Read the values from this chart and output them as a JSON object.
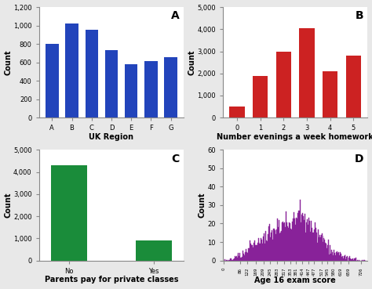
{
  "A": {
    "label": "A",
    "categories": [
      "A",
      "B",
      "C",
      "D",
      "E",
      "F",
      "G"
    ],
    "values": [
      800,
      1020,
      950,
      730,
      580,
      615,
      655
    ],
    "color": "#2244BB",
    "xlabel": "UK Region",
    "ylabel": "Count",
    "ylim": [
      0,
      1200
    ],
    "yticks": [
      0,
      200,
      400,
      600,
      800,
      1000,
      1200
    ]
  },
  "B": {
    "label": "B",
    "categories": [
      "0",
      "1",
      "2",
      "3",
      "4",
      "5"
    ],
    "values": [
      500,
      1880,
      2970,
      4060,
      2100,
      2820
    ],
    "color": "#CC2222",
    "xlabel": "Number evenings a week homework",
    "ylabel": "Count",
    "ylim": [
      0,
      5000
    ],
    "yticks": [
      0,
      1000,
      2000,
      3000,
      4000,
      5000
    ]
  },
  "C": {
    "label": "C",
    "categories": [
      "No",
      "Yes"
    ],
    "values": [
      4320,
      900
    ],
    "color": "#1A8C3A",
    "xlabel": "Parents pay for private classes",
    "ylabel": "Count",
    "ylim": [
      0,
      5000
    ],
    "yticks": [
      0,
      1000,
      2000,
      3000,
      4000,
      5000
    ]
  },
  "D": {
    "label": "D",
    "xlabel": "Age 16 exam score",
    "ylabel": "Count",
    "ylim": [
      0,
      60
    ],
    "yticks": [
      0,
      10,
      20,
      30,
      40,
      50,
      60
    ],
    "xtick_labels": [
      "0",
      "86",
      "122",
      "169",
      "209",
      "245",
      "283",
      "317",
      "353",
      "381",
      "414",
      "447",
      "477",
      "517",
      "545",
      "580",
      "619",
      "659",
      "726"
    ],
    "xtick_vals": [
      0,
      86,
      122,
      169,
      209,
      245,
      283,
      317,
      353,
      381,
      414,
      447,
      477,
      517,
      545,
      580,
      619,
      659,
      726
    ],
    "color": "#882299",
    "seed": 12345
  },
  "bg_color": "#e8e8e8",
  "panel_bg": "#ffffff",
  "label_fontsize": 7,
  "tick_fontsize": 6,
  "panel_label_fontsize": 10,
  "xlabel_bold": true
}
